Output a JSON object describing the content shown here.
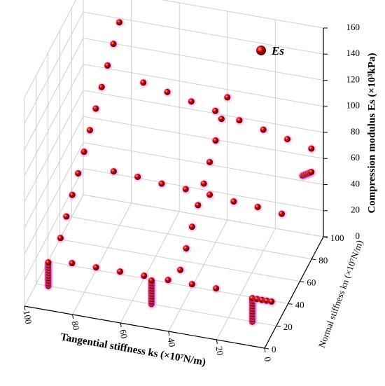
{
  "chart_data": {
    "type": "scatter3d",
    "xlabel": "Tangential stiffness ks (×10⁷N/m)",
    "ylabel": "Normal stiffness kn (×10⁷N/m)",
    "zlabel": "Compression modulus Es (×10³kPa)",
    "xlim": [
      0,
      100
    ],
    "xticks": [
      0,
      20,
      40,
      60,
      80,
      100
    ],
    "ylim": [
      0,
      100
    ],
    "yticks": [
      0,
      20,
      40,
      60,
      80,
      100
    ],
    "zlim": [
      0,
      160
    ],
    "zticks": [
      0,
      20,
      40,
      60,
      80,
      100,
      120,
      140,
      160
    ],
    "grid": true,
    "legend": "upper right",
    "series": [
      {
        "name": "Es",
        "color": "#c00000",
        "x": [
          95,
          95,
          95,
          95,
          95,
          95,
          95,
          95,
          95,
          95,
          52,
          52,
          52,
          52,
          52,
          52,
          52,
          52,
          52,
          52,
          10,
          10,
          10,
          10,
          10,
          10,
          10,
          10,
          10,
          10,
          8,
          6,
          4,
          2,
          90,
          80,
          70,
          60,
          50,
          40,
          30,
          85,
          85,
          85,
          85,
          85,
          85,
          85,
          85,
          85,
          85,
          85,
          75,
          65,
          55,
          45,
          35,
          25,
          15,
          5,
          80,
          70,
          60,
          50,
          40,
          30,
          20,
          10,
          40,
          40,
          40,
          40,
          40,
          40,
          40,
          40,
          40,
          5,
          5,
          5,
          5,
          5,
          5
        ],
        "y": [
          20,
          20,
          20,
          20,
          20,
          20,
          20,
          20,
          20,
          20,
          20,
          20,
          20,
          20,
          20,
          20,
          20,
          20,
          20,
          20,
          20,
          20,
          20,
          20,
          20,
          20,
          20,
          20,
          20,
          20,
          20,
          20,
          20,
          20,
          40,
          40,
          40,
          40,
          40,
          40,
          40,
          0,
          10,
          20,
          30,
          40,
          50,
          60,
          70,
          80,
          90,
          100,
          100,
          100,
          100,
          100,
          100,
          100,
          100,
          100,
          70,
          70,
          70,
          70,
          70,
          70,
          70,
          70,
          20,
          30,
          40,
          50,
          60,
          70,
          80,
          90,
          100,
          85,
          88,
          91,
          94,
          97,
          100
        ],
        "z": [
          0,
          2,
          4,
          6,
          8,
          10,
          12,
          14,
          16,
          18,
          0,
          2,
          4,
          6,
          8,
          10,
          12,
          14,
          16,
          18,
          0,
          2,
          4,
          6,
          8,
          10,
          12,
          14,
          16,
          18,
          18,
          18,
          18,
          18,
          2,
          2,
          2,
          2,
          2,
          2,
          2,
          57,
          65,
          73,
          81,
          89,
          97,
          105,
          113,
          121,
          129,
          137,
          94,
          90,
          86,
          82,
          78,
          74,
          70,
          66,
          50,
          49,
          47,
          46,
          45,
          43,
          42,
          40,
          30,
          38,
          46,
          54,
          62,
          70,
          78,
          86,
          94,
          58,
          56,
          54,
          52,
          50,
          48
        ]
      }
    ]
  }
}
